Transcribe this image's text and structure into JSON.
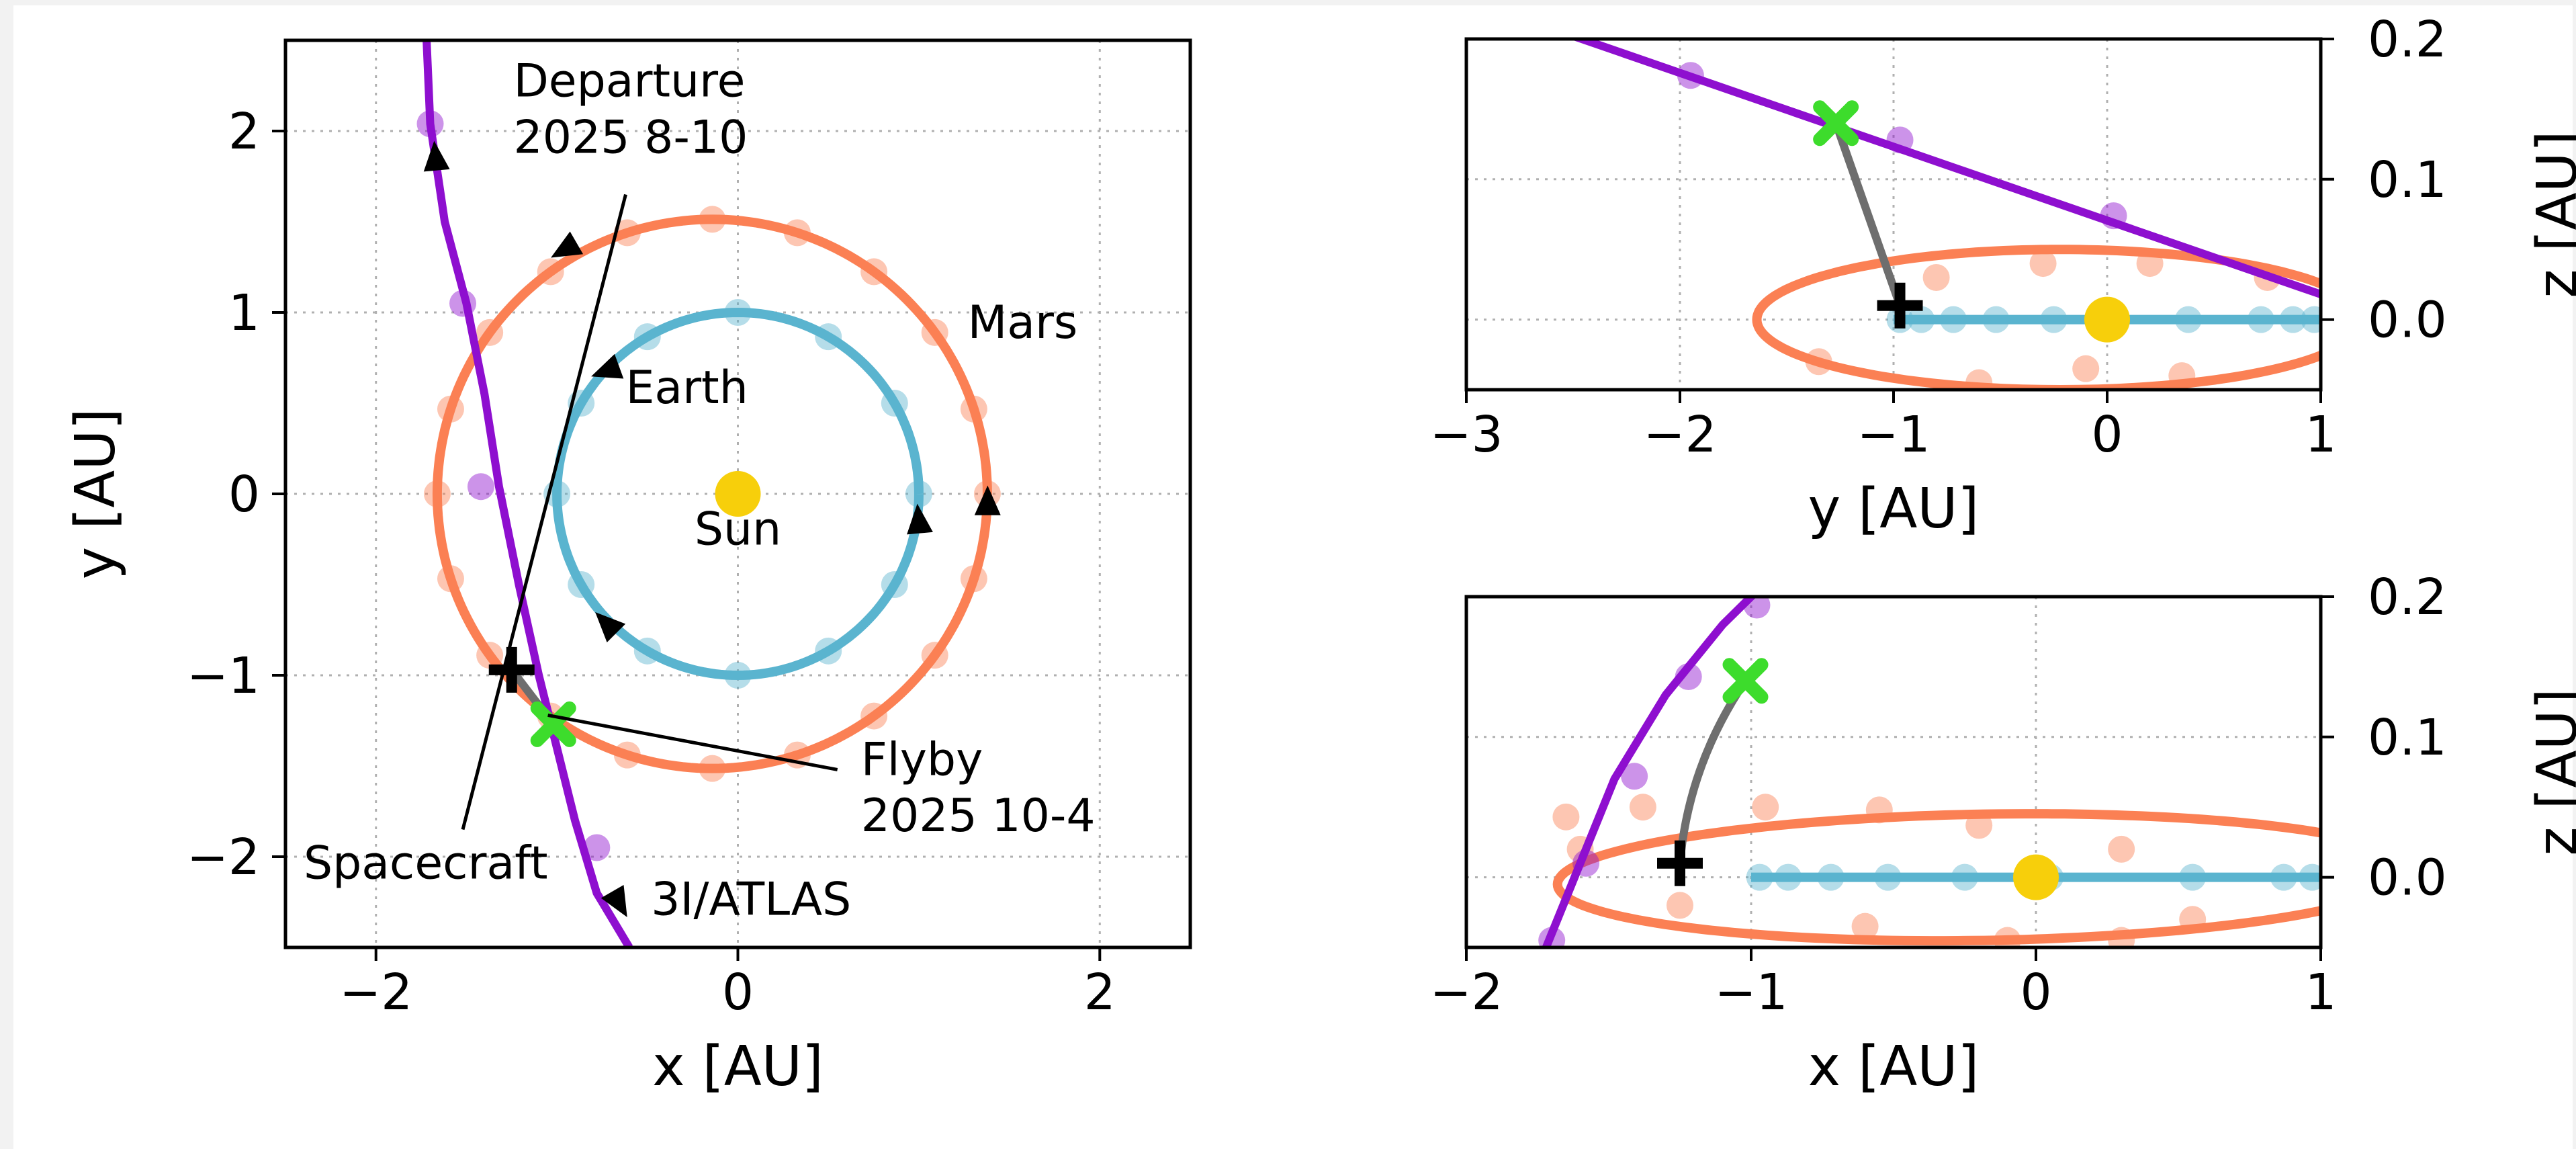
{
  "colors": {
    "earth": "#5ab4cf",
    "mars": "#fb8054",
    "atlas": "#8e0fcf",
    "sun": "#f7cf0b",
    "flyby_marker": "#3ddc2c",
    "spacecraft_marker": "#000000",
    "transfer": "#6e6e6e",
    "grid": "#b0b0b0"
  },
  "chart_data": [
    {
      "type": "line",
      "view": "x-y",
      "xlabel": "x [AU]",
      "ylabel": "y [AU]",
      "xlim": [
        -2.5,
        2.5
      ],
      "ylim": [
        -2.5,
        2.5
      ],
      "xticks": [
        -2,
        0,
        2
      ],
      "yticks": [
        -2,
        -1,
        0,
        1,
        2
      ],
      "xtick_labels": [
        "−2",
        "0",
        "2"
      ],
      "ytick_labels": [
        "−2",
        "−1",
        "0",
        "1",
        "2"
      ],
      "grid": true,
      "series": [
        {
          "key": "earth",
          "orbit": {
            "a": 1.0,
            "e": 0.0
          }
        },
        {
          "key": "mars",
          "orbit": {
            "a": 1.52,
            "e": 0.093
          }
        },
        {
          "key": "atlas",
          "curve": [
            [
              -1.72,
              2.5
            ],
            [
              -1.7,
              2.04
            ],
            [
              -1.62,
              1.5
            ],
            [
              -1.5,
              1.05
            ],
            [
              -1.4,
              0.55
            ],
            [
              -1.32,
              0.04
            ],
            [
              -1.21,
              -0.5
            ],
            [
              -1.1,
              -1.0
            ],
            [
              -1.0,
              -1.4
            ],
            [
              -0.9,
              -1.8
            ],
            [
              -0.78,
              -2.2
            ],
            [
              -0.6,
              -2.5
            ]
          ]
        }
      ],
      "points": {
        "sun": [
          0.0,
          0.0
        ],
        "spacecraft": [
          -1.25,
          -0.97
        ],
        "flyby": [
          -1.02,
          -1.27
        ]
      },
      "labels": {
        "earth": "Earth",
        "mars": "Mars",
        "sun": "Sun",
        "atlas": "3I/ATLAS",
        "spacecraft": "Spacecraft",
        "departure": [
          "Departure",
          "2025 8-10"
        ],
        "flyby": [
          "Flyby",
          "2025 10-4"
        ]
      }
    },
    {
      "type": "line",
      "view": "y-z",
      "xlabel": "y [AU]",
      "ylabel": "z [AU]",
      "xlim": [
        -3,
        1
      ],
      "ylim": [
        -0.05,
        0.2
      ],
      "xticks": [
        -3,
        -2,
        -1,
        0,
        1
      ],
      "yticks": [
        0.0,
        0.1,
        0.2
      ],
      "xtick_labels": [
        "−3",
        "−2",
        "−1",
        "0",
        "1"
      ],
      "ytick_labels": [
        "0.0",
        "0.1",
        "0.2"
      ],
      "grid": true,
      "points": {
        "sun": [
          0.0,
          0.0
        ],
        "spacecraft": [
          -0.97,
          0.01
        ],
        "flyby": [
          -1.27,
          0.14
        ]
      }
    },
    {
      "type": "line",
      "view": "x-z",
      "xlabel": "x [AU]",
      "ylabel": "z [AU]",
      "xlim": [
        -2,
        1
      ],
      "ylim": [
        -0.05,
        0.2
      ],
      "xticks": [
        -2,
        -1,
        0,
        1
      ],
      "yticks": [
        0.0,
        0.1,
        0.2
      ],
      "xtick_labels": [
        "−2",
        "−1",
        "0",
        "1"
      ],
      "ytick_labels": [
        "0.0",
        "0.1",
        "0.2"
      ],
      "grid": true,
      "points": {
        "sun": [
          0.0,
          0.0
        ],
        "spacecraft": [
          -1.25,
          0.01
        ],
        "flyby": [
          -1.02,
          0.14
        ]
      }
    }
  ]
}
